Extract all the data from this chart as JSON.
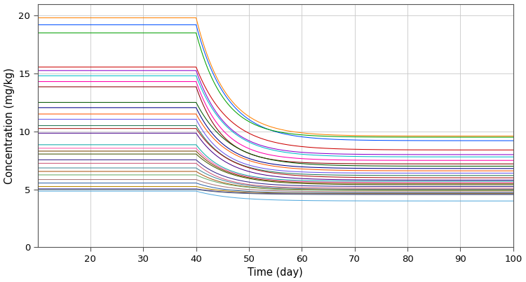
{
  "xlabel": "Time (day)",
  "ylabel": "Concentration (mg/kg)",
  "xlim": [
    10,
    100
  ],
  "ylim": [
    0,
    21
  ],
  "xticks": [
    20,
    30,
    40,
    50,
    60,
    70,
    80,
    90,
    100
  ],
  "yticks": [
    0,
    5,
    10,
    15,
    20
  ],
  "dose_change_day": 40,
  "t_start": 10,
  "t_end": 100,
  "background_color": "#FFFFFF",
  "grid_color": "#C8C8C8",
  "figsize": [
    7.5,
    4.03
  ],
  "dpi": 100,
  "initial_levels": [
    19.8,
    19.2,
    18.5,
    15.55,
    15.25,
    14.8,
    14.3,
    13.85,
    12.5,
    12.05,
    11.5,
    11.05,
    10.5,
    10.25,
    9.85,
    8.85,
    8.55,
    8.3,
    8.05,
    7.55,
    7.25,
    6.85,
    6.55,
    6.25,
    5.85,
    5.55,
    5.25,
    5.05,
    5.0,
    4.85
  ],
  "final_levels": [
    9.6,
    9.2,
    9.5,
    8.4,
    8.0,
    7.8,
    7.5,
    7.2,
    7.0,
    6.8,
    6.6,
    6.4,
    6.2,
    6.0,
    5.8,
    5.7,
    5.6,
    5.5,
    5.4,
    5.25,
    5.1,
    5.0,
    4.95,
    4.9,
    4.8,
    4.7,
    4.65,
    4.6,
    4.55,
    4.0
  ],
  "decay_rates": [
    0.18,
    0.17,
    0.19,
    0.16,
    0.18,
    0.17,
    0.19,
    0.2,
    0.16,
    0.18,
    0.17,
    0.19,
    0.18,
    0.16,
    0.17,
    0.19,
    0.18,
    0.17,
    0.16,
    0.18,
    0.19,
    0.17,
    0.18,
    0.16,
    0.17,
    0.19,
    0.18,
    0.17,
    0.16,
    0.15
  ],
  "colors": [
    "#FF8000",
    "#0050FF",
    "#00A000",
    "#CC0000",
    "#8B00CC",
    "#00BBCC",
    "#FF00AA",
    "#880000",
    "#005500",
    "#000088",
    "#FF5500",
    "#6655EE",
    "#227755",
    "#AA1111",
    "#440088",
    "#11AAAA",
    "#FF55AA",
    "#774400",
    "#445500",
    "#332288",
    "#CC5577",
    "#448899",
    "#AA5511",
    "#66AA66",
    "#AA7777",
    "#3366AA",
    "#BB8800",
    "#5544AA",
    "#556677",
    "#55AADD"
  ]
}
